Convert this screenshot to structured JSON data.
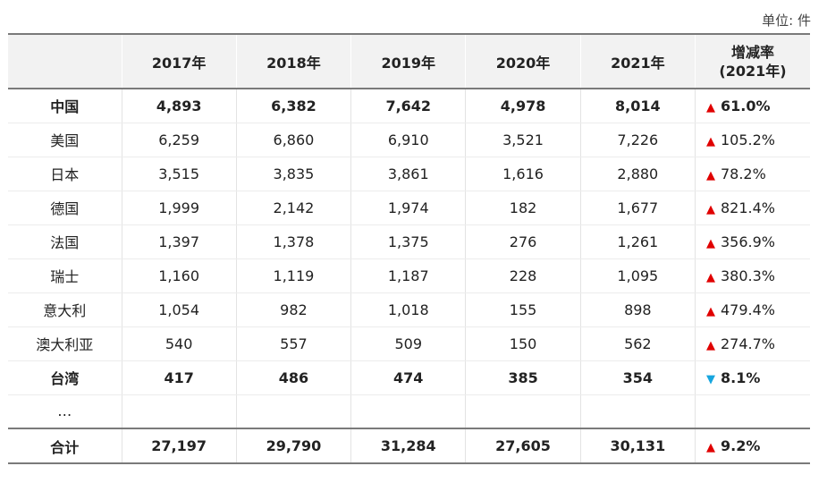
{
  "unit_label": "单位: 件",
  "header": {
    "corner": "",
    "years": [
      "2017年",
      "2018年",
      "2019年",
      "2020年",
      "2021年"
    ],
    "growth_line1": "增减率",
    "growth_line2": "(2021年)"
  },
  "colors": {
    "up_arrow": "#e00000",
    "down_arrow": "#17a6df",
    "header_bg": "#f2f2f2"
  },
  "rows": [
    {
      "name": "中国",
      "bold": true,
      "values": [
        "4,893",
        "6,382",
        "7,642",
        "4,978",
        "8,014"
      ],
      "trend": "up",
      "trend_icon": "up-triangle-icon",
      "growth": "61.0%"
    },
    {
      "name": "美国",
      "bold": false,
      "values": [
        "6,259",
        "6,860",
        "6,910",
        "3,521",
        "7,226"
      ],
      "trend": "up",
      "trend_icon": "up-triangle-icon",
      "growth": "105.2%"
    },
    {
      "name": "日本",
      "bold": false,
      "values": [
        "3,515",
        "3,835",
        "3,861",
        "1,616",
        "2,880"
      ],
      "trend": "up",
      "trend_icon": "up-triangle-icon",
      "growth": "78.2%"
    },
    {
      "name": "德国",
      "bold": false,
      "values": [
        "1,999",
        "2,142",
        "1,974",
        "182",
        "1,677"
      ],
      "trend": "up",
      "trend_icon": "up-triangle-icon",
      "growth": "821.4%"
    },
    {
      "name": "法国",
      "bold": false,
      "values": [
        "1,397",
        "1,378",
        "1,375",
        "276",
        "1,261"
      ],
      "trend": "up",
      "trend_icon": "up-triangle-icon",
      "growth": "356.9%"
    },
    {
      "name": "瑞士",
      "bold": false,
      "values": [
        "1,160",
        "1,119",
        "1,187",
        "228",
        "1,095"
      ],
      "trend": "up",
      "trend_icon": "up-triangle-icon",
      "growth": "380.3%"
    },
    {
      "name": "意大利",
      "bold": false,
      "values": [
        "1,054",
        "982",
        "1,018",
        "155",
        "898"
      ],
      "trend": "up",
      "trend_icon": "up-triangle-icon",
      "growth": "479.4%"
    },
    {
      "name": "澳大利亚",
      "bold": false,
      "values": [
        "540",
        "557",
        "509",
        "150",
        "562"
      ],
      "trend": "up",
      "trend_icon": "up-triangle-icon",
      "growth": "274.7%"
    },
    {
      "name": "台湾",
      "bold": true,
      "values": [
        "417",
        "486",
        "474",
        "385",
        "354"
      ],
      "trend": "down",
      "trend_icon": "down-triangle-icon",
      "growth": "8.1%"
    },
    {
      "name": "…",
      "bold": false,
      "values": [
        "",
        "",
        "",
        "",
        ""
      ],
      "trend": "",
      "trend_icon": "",
      "growth": ""
    }
  ],
  "total": {
    "name": "合计",
    "values": [
      "27,197",
      "29,790",
      "31,284",
      "27,605",
      "30,131"
    ],
    "trend": "up",
    "trend_icon": "up-triangle-icon",
    "growth": "9.2%"
  }
}
